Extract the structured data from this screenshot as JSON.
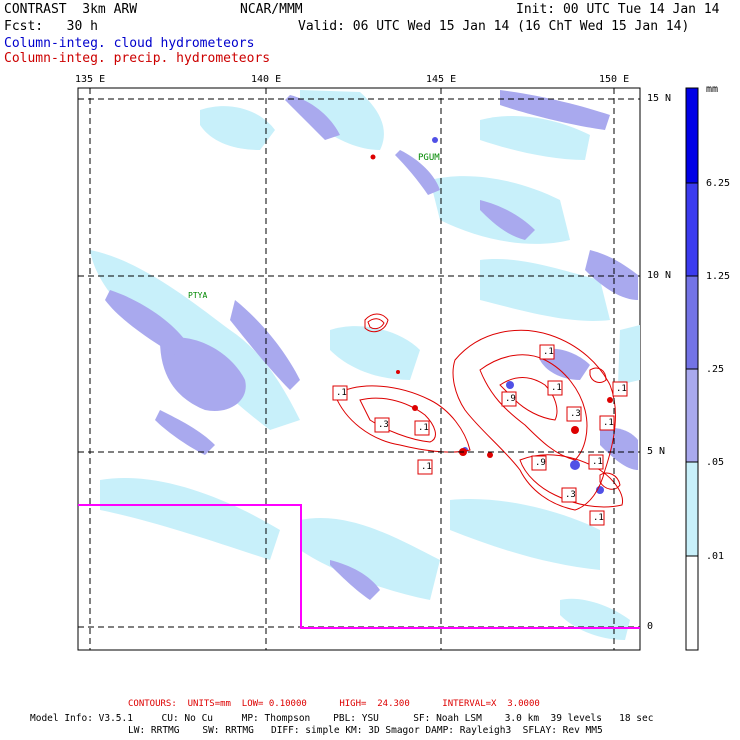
{
  "header": {
    "model": "CONTRAST  3km ARW",
    "org": "NCAR/MMM",
    "init": "Init: 00 UTC Tue 14 Jan 14",
    "fcst": "Fcst:   30 h",
    "valid": "Valid: 06 UTC Wed 15 Jan 14 (16 ChT Wed 15 Jan 14)",
    "field_blue": "Column-integ. cloud hydrometeors",
    "field_red": "Column-integ. precip. hydrometeors"
  },
  "map": {
    "lon_labels": [
      "135 E",
      "140 E",
      "145 E",
      "150 E"
    ],
    "lat_labels": [
      "15 N",
      "10 N",
      "5 N",
      "0"
    ],
    "stations": [
      "PGUM",
      "PTYA"
    ],
    "contour_labels": [
      ".1",
      ".3",
      ".1",
      ".1",
      ".9",
      ".1",
      ".1",
      ".3",
      ".1",
      ".1",
      ".9",
      ".3",
      ".1",
      ".1"
    ]
  },
  "colorbar": {
    "unit": "mm",
    "ticks": [
      "6.25",
      "1.25",
      ".25",
      ".05",
      ".01"
    ],
    "colors": [
      "#0000e6",
      "#3b3bef",
      "#7373e6",
      "#a9a9ee",
      "#c8f0fa",
      "#ffffff"
    ]
  },
  "footer": {
    "contours": "CONTOURS:  UNITS=mm  LOW= 0.10000      HIGH=  24.300      INTERVAL=X  3.0000",
    "model_info_1": "Model Info: V3.5.1     CU: No Cu     MP: Thompson    PBL: YSU      SF: Noah LSM    3.0 km  39 levels   18 sec",
    "model_info_2": "LW: RRTMG    SW: RRTMG   DIFF: simple KM: 3D Smagor DAMP: Rayleigh3  SFLAY: Rev MM5"
  },
  "colors": {
    "blue_text": "#0000cc",
    "red_text": "#cc0000",
    "magenta_box": "#ff00ff",
    "station_green": "#008800"
  }
}
